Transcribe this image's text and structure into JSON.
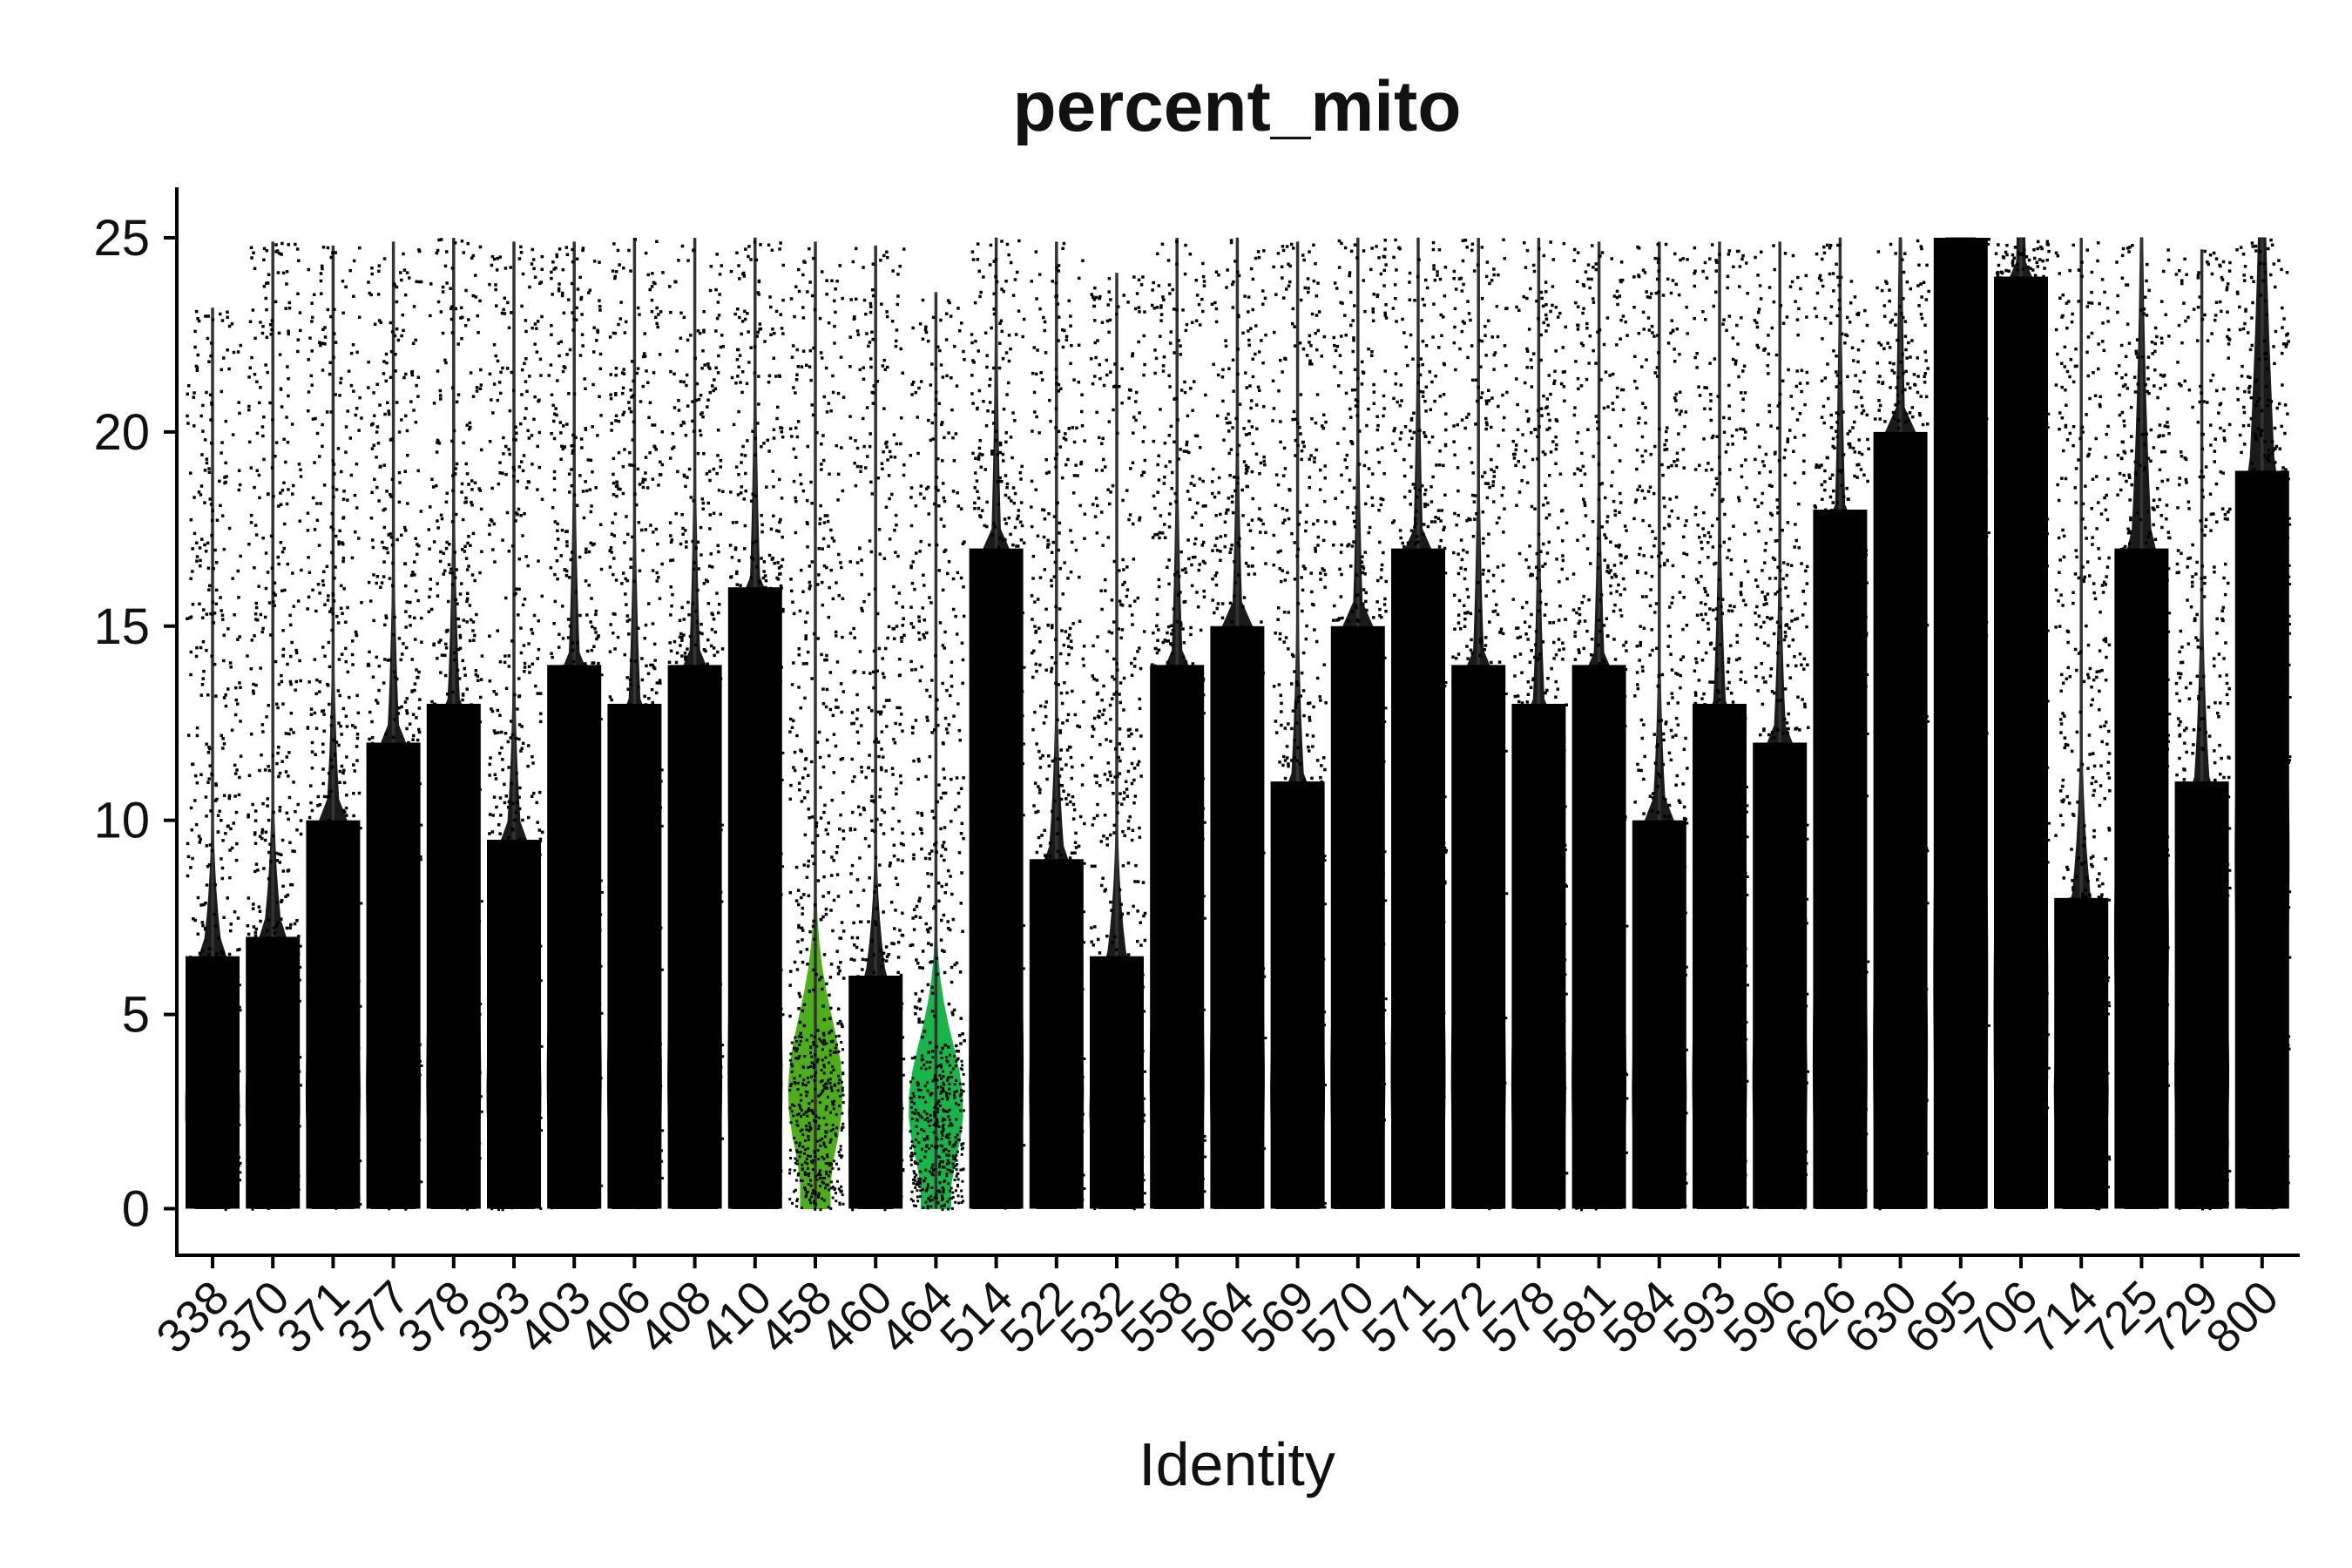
{
  "chart_data": {
    "type": "violin",
    "title": "percent_mito",
    "xlabel": "Identity",
    "ylabel": "",
    "ylim": [
      -1.2,
      26.3
    ],
    "yticks": [
      0,
      5,
      10,
      15,
      20,
      25
    ],
    "categories": [
      "338",
      "370",
      "371",
      "377",
      "378",
      "393",
      "403",
      "406",
      "408",
      "410",
      "458",
      "460",
      "464",
      "514",
      "522",
      "532",
      "558",
      "564",
      "569",
      "570",
      "571",
      "572",
      "578",
      "581",
      "584",
      "593",
      "596",
      "626",
      "630",
      "695",
      "706",
      "714",
      "725",
      "729",
      "800"
    ],
    "series": [
      {
        "category": "338",
        "max": 23.2,
        "dense_top": 6.5,
        "median": 2.6
      },
      {
        "category": "370",
        "max": 24.9,
        "dense_top": 7.0,
        "median": 2.7
      },
      {
        "category": "371",
        "max": 24.8,
        "dense_top": 10.0,
        "median": 3.0
      },
      {
        "category": "377",
        "max": 24.9,
        "dense_top": 12.0,
        "median": 3.2
      },
      {
        "category": "378",
        "max": 25.0,
        "dense_top": 13.0,
        "median": 3.4
      },
      {
        "category": "393",
        "max": 24.9,
        "dense_top": 9.5,
        "median": 3.0
      },
      {
        "category": "403",
        "max": 24.9,
        "dense_top": 14.0,
        "median": 3.4
      },
      {
        "category": "406",
        "max": 25.0,
        "dense_top": 13.0,
        "median": 3.3
      },
      {
        "category": "408",
        "max": 25.0,
        "dense_top": 14.0,
        "median": 3.4
      },
      {
        "category": "410",
        "max": 25.0,
        "dense_top": 16.0,
        "median": 3.5
      },
      {
        "category": "458",
        "max": 24.9,
        "dense_top": 4.5,
        "median": 3.0
      },
      {
        "category": "460",
        "max": 24.8,
        "dense_top": 6.0,
        "median": 2.4
      },
      {
        "category": "464",
        "max": 23.6,
        "dense_top": 4.0,
        "median": 2.6
      },
      {
        "category": "514",
        "max": 25.0,
        "dense_top": 17.0,
        "median": 3.6
      },
      {
        "category": "522",
        "max": 24.9,
        "dense_top": 9.0,
        "median": 3.0
      },
      {
        "category": "532",
        "max": 24.1,
        "dense_top": 6.5,
        "median": 2.5
      },
      {
        "category": "558",
        "max": 25.0,
        "dense_top": 14.0,
        "median": 3.4
      },
      {
        "category": "564",
        "max": 25.0,
        "dense_top": 15.0,
        "median": 3.4
      },
      {
        "category": "569",
        "max": 24.9,
        "dense_top": 11.0,
        "median": 3.0
      },
      {
        "category": "570",
        "max": 25.0,
        "dense_top": 15.0,
        "median": 3.4
      },
      {
        "category": "571",
        "max": 25.0,
        "dense_top": 17.0,
        "median": 3.5
      },
      {
        "category": "572",
        "max": 25.0,
        "dense_top": 14.0,
        "median": 3.4
      },
      {
        "category": "578",
        "max": 25.0,
        "dense_top": 13.0,
        "median": 3.2
      },
      {
        "category": "581",
        "max": 24.9,
        "dense_top": 14.0,
        "median": 3.3
      },
      {
        "category": "584",
        "max": 24.9,
        "dense_top": 10.0,
        "median": 3.0
      },
      {
        "category": "593",
        "max": 24.9,
        "dense_top": 13.0,
        "median": 3.4
      },
      {
        "category": "596",
        "max": 24.9,
        "dense_top": 12.0,
        "median": 3.3
      },
      {
        "category": "626",
        "max": 25.0,
        "dense_top": 18.0,
        "median": 3.8
      },
      {
        "category": "630",
        "max": 25.0,
        "dense_top": 20.0,
        "median": 4.0
      },
      {
        "category": "695",
        "max": 25.0,
        "dense_top": 25.0,
        "median": 6.0
      },
      {
        "category": "706",
        "max": 25.0,
        "dense_top": 24.0,
        "median": 5.0
      },
      {
        "category": "714",
        "max": 25.0,
        "dense_top": 8.0,
        "median": 3.0
      },
      {
        "category": "725",
        "max": 25.0,
        "dense_top": 17.0,
        "median": 7.0
      },
      {
        "category": "729",
        "max": 24.7,
        "dense_top": 11.0,
        "median": 3.5
      },
      {
        "category": "800",
        "max": 25.0,
        "dense_top": 19.0,
        "median": 9.0
      }
    ],
    "highlight": [
      {
        "category": "458",
        "color": "#4caf1a"
      },
      {
        "category": "464",
        "color": "#18b548"
      }
    ],
    "point_color": "#000000",
    "grid": false,
    "legend": "none"
  }
}
